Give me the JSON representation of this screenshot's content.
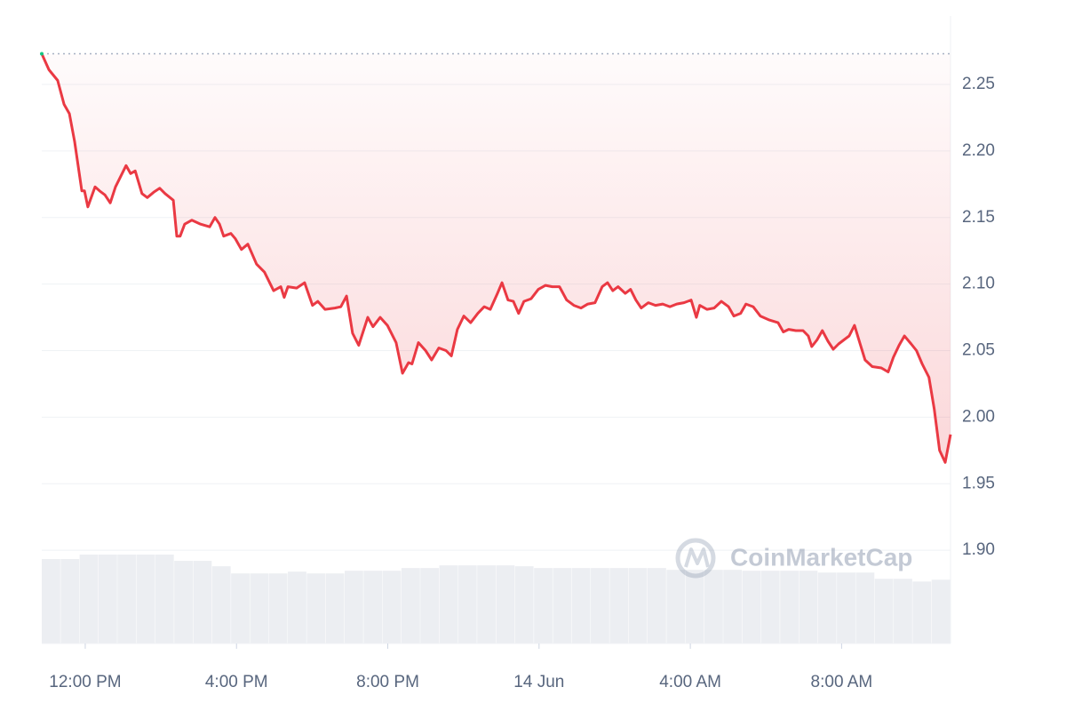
{
  "chart_data": {
    "type": "line",
    "watermark": "CoinMarketCap",
    "x": [
      10.85,
      11.04,
      11.27,
      11.44,
      11.58,
      11.72,
      11.91,
      11.98,
      12.07,
      12.26,
      12.38,
      12.52,
      12.66,
      12.8,
      13.08,
      13.2,
      13.32,
      13.5,
      13.64,
      13.81,
      13.97,
      14.11,
      14.33,
      14.42,
      14.51,
      14.63,
      14.82,
      15.05,
      15.29,
      15.43,
      15.55,
      15.66,
      15.85,
      15.97,
      16.13,
      16.3,
      16.53,
      16.74,
      16.98,
      17.17,
      17.26,
      17.36,
      17.59,
      17.8,
      18.01,
      18.15,
      18.34,
      18.6,
      18.76,
      18.91,
      19.07,
      19.23,
      19.47,
      19.61,
      19.8,
      19.99,
      20.22,
      20.39,
      20.55,
      20.64,
      20.81,
      21.0,
      21.16,
      21.35,
      21.54,
      21.68,
      21.84,
      22.01,
      22.19,
      22.38,
      22.55,
      22.71,
      22.9,
      23.02,
      23.18,
      23.32,
      23.46,
      23.6,
      23.79,
      23.98,
      24.17,
      24.35,
      24.54,
      24.73,
      24.92,
      25.11,
      25.29,
      25.48,
      25.67,
      25.81,
      25.95,
      26.09,
      26.28,
      26.42,
      26.56,
      26.7,
      26.89,
      27.08,
      27.27,
      27.46,
      27.64,
      27.83,
      28.02,
      28.16,
      28.25,
      28.44,
      28.63,
      28.82,
      29.01,
      29.15,
      29.33,
      29.47,
      29.66,
      29.85,
      30.09,
      30.32,
      30.46,
      30.6,
      30.79,
      30.98,
      31.12,
      31.21,
      31.35,
      31.49,
      31.64,
      31.78,
      31.92,
      32.06,
      32.2,
      32.34,
      32.48,
      32.62,
      32.81,
      33.05,
      33.23,
      33.37,
      33.52,
      33.66,
      33.84,
      33.98,
      34.13,
      34.31,
      34.45,
      34.59,
      34.74,
      34.88
    ],
    "series": [
      {
        "color": "#ea3943",
        "values": [
          2.273,
          2.261,
          2.253,
          2.235,
          2.228,
          2.207,
          2.17,
          2.17,
          2.158,
          2.173,
          2.17,
          2.167,
          2.161,
          2.173,
          2.189,
          2.183,
          2.185,
          2.168,
          2.165,
          2.169,
          2.172,
          2.168,
          2.163,
          2.136,
          2.136,
          2.145,
          2.148,
          2.145,
          2.143,
          2.15,
          2.145,
          2.136,
          2.138,
          2.134,
          2.126,
          2.13,
          2.115,
          2.109,
          2.095,
          2.098,
          2.09,
          2.098,
          2.097,
          2.101,
          2.084,
          2.087,
          2.081,
          2.082,
          2.083,
          2.091,
          2.063,
          2.054,
          2.075,
          2.068,
          2.075,
          2.069,
          2.056,
          2.033,
          2.041,
          2.04,
          2.056,
          2.05,
          2.043,
          2.052,
          2.05,
          2.046,
          2.066,
          2.076,
          2.071,
          2.078,
          2.083,
          2.081,
          2.093,
          2.101,
          2.088,
          2.087,
          2.078,
          2.087,
          2.089,
          2.096,
          2.099,
          2.098,
          2.098,
          2.088,
          2.084,
          2.082,
          2.085,
          2.086,
          2.098,
          2.101,
          2.095,
          2.098,
          2.093,
          2.096,
          2.088,
          2.082,
          2.086,
          2.084,
          2.085,
          2.083,
          2.085,
          2.086,
          2.088,
          2.075,
          2.084,
          2.081,
          2.082,
          2.087,
          2.083,
          2.076,
          2.078,
          2.085,
          2.083,
          2.076,
          2.073,
          2.071,
          2.064,
          2.066,
          2.065,
          2.065,
          2.061,
          2.053,
          2.058,
          2.065,
          2.057,
          2.051,
          2.055,
          2.058,
          2.061,
          2.069,
          2.056,
          2.043,
          2.038,
          2.037,
          2.034,
          2.045,
          2.054,
          2.061,
          2.055,
          2.05,
          2.04,
          2.03,
          2.006,
          1.975,
          1.966,
          1.987
        ]
      }
    ],
    "volume": {
      "color": "#eceef2",
      "values": [
        94,
        94,
        99,
        99,
        99,
        99,
        99,
        92,
        92,
        86,
        78,
        78,
        78,
        80,
        78,
        78,
        81,
        81,
        81,
        84,
        84,
        87,
        87,
        87,
        87,
        86,
        84,
        84,
        84,
        84,
        84,
        84,
        84,
        82,
        82,
        82,
        82,
        81,
        81,
        81,
        81,
        79,
        79,
        79,
        72,
        72,
        69,
        71
      ]
    },
    "xlim": [
      10.85,
      34.88
    ],
    "xticks": [
      {
        "value": 12,
        "label": "12:00 PM"
      },
      {
        "value": 16,
        "label": "4:00 PM"
      },
      {
        "value": 20,
        "label": "8:00 PM"
      },
      {
        "value": 24,
        "label": "14 Jun"
      },
      {
        "value": 28,
        "label": "4:00 AM"
      },
      {
        "value": 32,
        "label": "8:00 AM"
      }
    ],
    "ylim": [
      1.83,
      2.3014
    ],
    "yticks": [
      {
        "value": 1.9,
        "label": "1.90"
      },
      1.95,
      {
        "value": 2.0,
        "label": "2.00"
      },
      2.05,
      {
        "value": 2.1,
        "label": "2.10"
      },
      2.15,
      {
        "value": 2.2,
        "label": "2.20"
      },
      2.25
    ],
    "grid": true
  }
}
